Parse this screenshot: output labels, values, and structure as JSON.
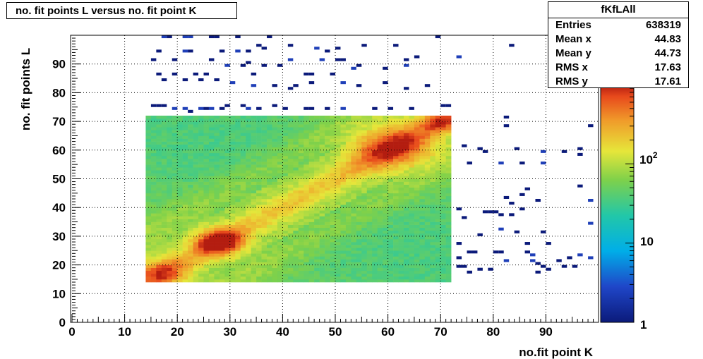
{
  "title": "no. fit points L versus no. fit point K",
  "stats": {
    "name": "fKfLAll",
    "rows": [
      {
        "label": "Entries",
        "value": "638319"
      },
      {
        "label": "Mean x",
        "value": "44.83"
      },
      {
        "label": "Mean y",
        "value": "44.73"
      },
      {
        "label": "RMS x",
        "value": "17.63"
      },
      {
        "label": "RMS y",
        "value": "17.61"
      }
    ]
  },
  "chart_data": {
    "type": "heatmap",
    "title": "no. fit points L versus no. fit point K",
    "xlabel": "no.fit point K",
    "ylabel": "no. fit points  L",
    "xlim": [
      0,
      100
    ],
    "ylim": [
      0,
      100
    ],
    "x_ticks": [
      "0",
      "10",
      "20",
      "30",
      "40",
      "50",
      "60",
      "70",
      "80",
      "90"
    ],
    "y_ticks": [
      "0",
      "10",
      "20",
      "30",
      "40",
      "50",
      "60",
      "70",
      "80",
      "90"
    ],
    "grid": true,
    "colorbar": {
      "scale": "log",
      "range": [
        1,
        1000
      ],
      "tick_labels": [
        "1",
        "10",
        "10^2"
      ],
      "palette": "rainbow"
    },
    "dense_region": {
      "x": [
        14,
        72
      ],
      "y": [
        14,
        72
      ]
    },
    "peaks": [
      {
        "x": 28,
        "y": 28,
        "note": "maximum"
      },
      {
        "x": 17,
        "y": 17
      },
      {
        "x": 61,
        "y": 61
      },
      {
        "x": 70,
        "y": 70
      }
    ],
    "sparse_entries_outside_region": true
  }
}
